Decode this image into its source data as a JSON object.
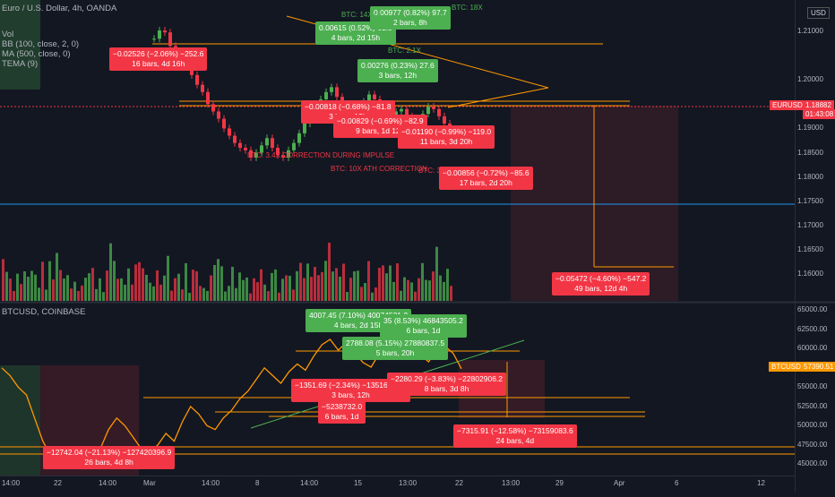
{
  "top_panel": {
    "legend": {
      "title": "Euro / U.S. Dollar, 4h, OANDA",
      "vol": "Vol",
      "bb": "BB (100, close, 2, 0)",
      "ma": "MA (500, close, 0)",
      "tema": "TEMA (9)"
    },
    "symbol": "EURUSD",
    "last_price": "1.18882",
    "countdown": "01:43:08",
    "currency_button": "USD",
    "y_ticks": [
      "1.21000",
      "1.20000",
      "1.19500",
      "1.19000",
      "1.18500",
      "1.18000",
      "1.17500",
      "1.17000",
      "1.16500",
      "1.16000"
    ]
  },
  "bottom_panel": {
    "legend": {
      "title": "BTCUSD, COINBASE"
    },
    "symbol": "BTCUSD",
    "last_price": "57390.51",
    "y_ticks": [
      "65000.00",
      "62500.00",
      "60000.00",
      "57500.00",
      "55000.00",
      "52500.00",
      "50000.00",
      "47500.00",
      "45000.00"
    ]
  },
  "x_axis": {
    "ticks": [
      "14:00",
      "22",
      "14:00",
      "Mar",
      "14:00",
      "8",
      "14:00",
      "15",
      "13:00",
      "22",
      "13:00",
      "29",
      "Apr",
      "6",
      "12"
    ]
  },
  "measure_labels_top": [
    {
      "l1": "−0.02526 (−2.06%) −252.6",
      "l2": "16 bars, 4d 16h",
      "color": "red"
    },
    {
      "l1": "0.00615 (0.52%) 61.5",
      "l2": "4 bars, 2d 15h",
      "color": "green"
    },
    {
      "l1": "0.00977 (0.82%) 97.7",
      "l2": "2 bars, 8h",
      "color": "green"
    },
    {
      "l1": "0.00276 (0.23%) 27.6",
      "l2": "3 bars, 12h",
      "color": "green"
    },
    {
      "l1": "−0.00818 (−0.68%) −81.8",
      "l2": "3 bars, 12h",
      "color": "red"
    },
    {
      "l1": "−0.00829 (−0.69%) −82.9",
      "l2": "9 bars, 1d 12h",
      "color": "red"
    },
    {
      "l1": "−0.01190 (−0.99%) −119.0",
      "l2": "11 bars, 3d 20h",
      "color": "red"
    },
    {
      "l1": "−0.00856 (−0.72%) −85.6",
      "l2": "17 bars, 2d 20h",
      "color": "red"
    },
    {
      "l1": "−0.05472 (−4.60%) −547.2",
      "l2": "49 bars, 12d 4h",
      "color": "red"
    }
  ],
  "notes_top": [
    {
      "text": "BTC: 14X (A",
      "color": "#4caf50"
    },
    {
      "text": "BTC: 2.1X",
      "color": "#4caf50"
    },
    {
      "text": "BTC: 3.4X CORRECTION DURING IMPULSE",
      "color": "#f23645"
    },
    {
      "text": "BTC: 10X ATH CORRECTION",
      "color": "#f23645"
    },
    {
      "text": "BTC: 3X",
      "color": "#f23645"
    },
    {
      "text": "BTC: 18X",
      "color": "#4caf50"
    }
  ],
  "measure_labels_bottom": [
    {
      "l1": "4007.45 (7.10%) 40074531.2",
      "l2": "4 bars, 2d 15h",
      "color": "green"
    },
    {
      "l1": "35 (8.53%) 46843505.2",
      "l2": "6 bars, 1d",
      "color": "green"
    },
    {
      "l1": "2788.08 (5.15%) 27880837.5",
      "l2": "5 bars, 20h",
      "color": "green"
    },
    {
      "l1": "−1351.69 (−2.34%) −13516920.8",
      "l2": "3 bars, 12h",
      "color": "red"
    },
    {
      "l1": "−2280.29 (−3.83%) −22802906.2",
      "l2": "8 bars, 3d 8h",
      "color": "red"
    },
    {
      "l1": "−5238732.0",
      "l2": "6 bars, 1d",
      "color": "red"
    },
    {
      "l1": "−7315.91 (−12.58%) −73159083.6",
      "l2": "24 bars, 4d",
      "color": "red"
    },
    {
      "l1": "−12742.04 (−21.13%) −127420396.9",
      "l2": "26 bars, 4d 8h",
      "color": "red"
    }
  ],
  "colors": {
    "bg": "#131722",
    "red": "#f23645",
    "green": "#4caf50",
    "orange": "#ff9800",
    "blue_line": "#2196f3"
  },
  "chart_data": [
    {
      "type": "candlestick",
      "title": "Euro / U.S. Dollar, 4h, OANDA",
      "ylim": [
        1.155,
        1.215
      ],
      "series": [
        {
          "name": "EURUSD",
          "values": [
            1.2085,
            1.2102,
            1.2098,
            1.207,
            1.204,
            1.2055,
            1.2035,
            1.201,
            1.199,
            1.1975,
            1.195,
            1.1935,
            1.192,
            1.19,
            1.1885,
            1.187,
            1.186,
            1.1855,
            1.184,
            1.185,
            1.1865,
            1.188,
            1.186,
            1.1845,
            1.184,
            1.1855,
            1.187,
            1.189,
            1.191,
            1.1925,
            1.1945,
            1.196,
            1.1975,
            1.1985,
            1.1965,
            1.1945,
            1.193,
            1.192,
            1.194,
            1.1955,
            1.197,
            1.196,
            1.1945,
            1.1925,
            1.1915,
            1.1935,
            1.194,
            1.1925,
            1.191,
            1.1915,
            1.193,
            1.1945,
            1.194,
            1.1925,
            1.191,
            1.189
          ]
        }
      ]
    },
    {
      "type": "line",
      "title": "BTCUSD, COINBASE",
      "ylim": [
        44000,
        65500
      ],
      "series": [
        {
          "name": "BTCUSD",
          "values": [
            57500,
            56500,
            55000,
            54000,
            51000,
            48000,
            46000,
            45500,
            46500,
            47000,
            46000,
            45000,
            47000,
            49500,
            51000,
            50000,
            48500,
            47000,
            46500,
            47500,
            49000,
            48000,
            50500,
            52500,
            51500,
            50000,
            49500,
            51000,
            52000,
            53500,
            54500,
            56000,
            57500,
            56500,
            55500,
            57000,
            58000,
            57200,
            59000,
            60500,
            61200,
            59800,
            60800,
            59500,
            58200,
            57600,
            59400,
            60100,
            58800,
            59900,
            60600,
            59200,
            58300,
            59800,
            60300,
            59400,
            57390
          ]
        }
      ]
    }
  ]
}
